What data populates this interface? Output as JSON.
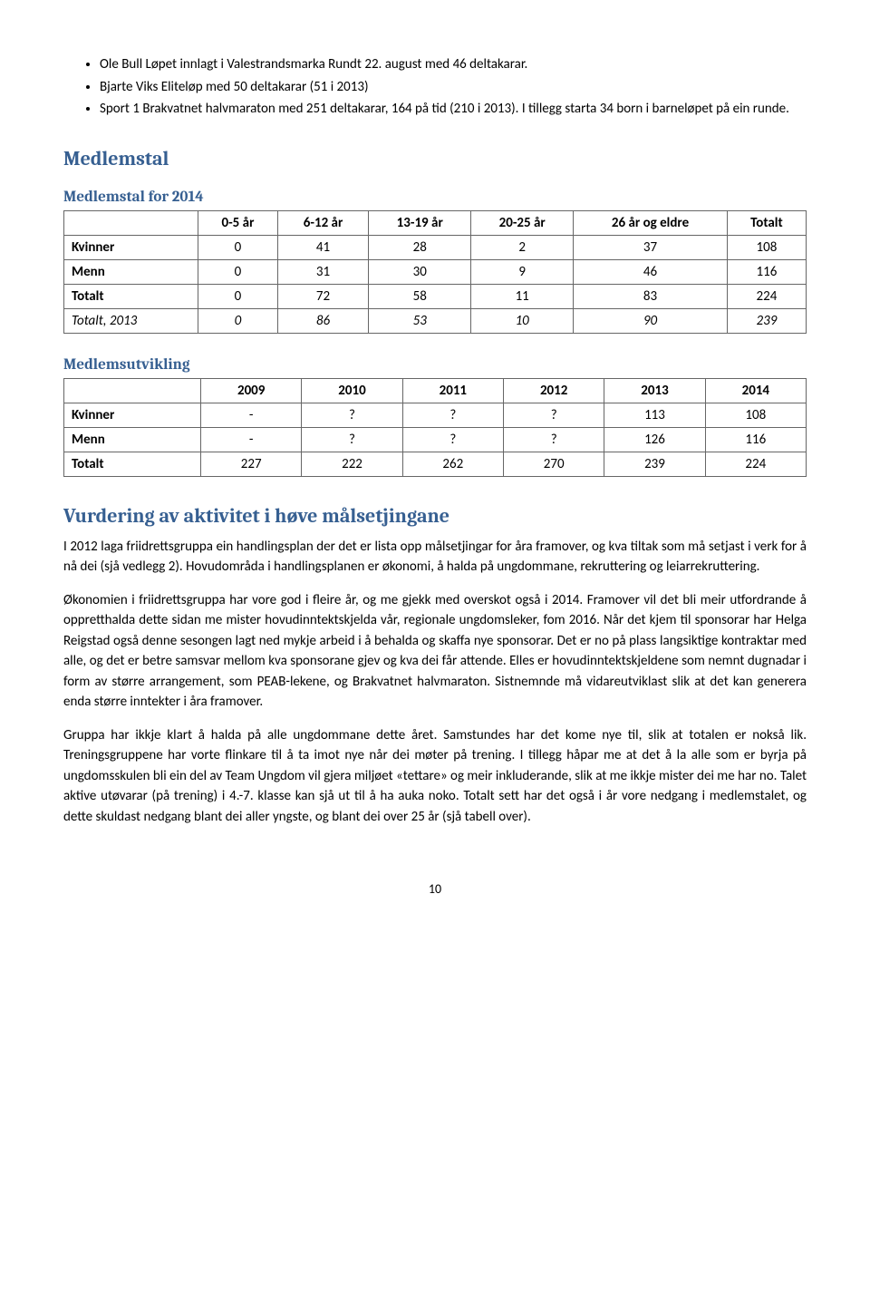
{
  "bullets": [
    "Ole Bull Løpet innlagt i Valestrandsmarka Rundt 22. august med 46 deltakarar.",
    "Bjarte Viks Eliteløp med 50 deltakarar (51 i 2013)",
    "Sport 1 Brakvatnet halvmaraton med 251 deltakarar, 164 på tid (210 i 2013). I tillegg starta 34 born i barneløpet på ein runde."
  ],
  "h_medlemstal": "Medlemstal",
  "h_medlemstal2014": "Medlemstal for 2014",
  "t1": {
    "headers": [
      "",
      "0-5 år",
      "6-12 år",
      "13-19 år",
      "20-25 år",
      "26 år og eldre",
      "Totalt"
    ],
    "rows": [
      [
        "Kvinner",
        "0",
        "41",
        "28",
        "2",
        "37",
        "108"
      ],
      [
        "Menn",
        "0",
        "31",
        "30",
        "9",
        "46",
        "116"
      ],
      [
        "Totalt",
        "0",
        "72",
        "58",
        "11",
        "83",
        "224"
      ]
    ],
    "italicRow": [
      "Totalt, 2013",
      "0",
      "86",
      "53",
      "10",
      "90",
      "239"
    ]
  },
  "h_utvikling": "Medlemsutvikling",
  "t2": {
    "headers": [
      "",
      "2009",
      "2010",
      "2011",
      "2012",
      "2013",
      "2014"
    ],
    "rows": [
      [
        "Kvinner",
        "-",
        "?",
        "?",
        "?",
        "113",
        "108"
      ],
      [
        "Menn",
        "-",
        "?",
        "?",
        "?",
        "126",
        "116"
      ],
      [
        "Totalt",
        "227",
        "222",
        "262",
        "270",
        "239",
        "224"
      ]
    ]
  },
  "h_vurdering": "Vurdering av aktivitet i høve målsetjingane",
  "paras": [
    "I 2012 laga friidrettsgruppa ein handlingsplan der det er lista opp målsetjingar for åra framover, og kva tiltak som må setjast i verk for å nå dei (sjå vedlegg 2). Hovudområda i handlingsplanen er økonomi, å halda på ungdommane, rekruttering og leiarrekruttering.",
    "Økonomien i friidrettsgruppa har vore god i fleire år, og me gjekk med overskot også i 2014. Framover vil det bli meir utfordrande å oppretthalda dette sidan me mister hovudinntektskjelda vår, regionale ungdomsleker, fom 2016. Når det kjem til sponsorar har Helga Reigstad også denne sesongen lagt ned mykje arbeid i å behalda og skaffa nye sponsorar. Det er no på plass langsiktige kontraktar med alle, og det er betre samsvar mellom kva sponsorane gjev og kva dei får attende. Elles er hovudinntektskjeldene som nemnt dugnadar i form av større arrangement, som PEAB-lekene, og Brakvatnet halvmaraton. Sistnemnde må vidareutviklast slik at det kan generera enda større inntekter i åra framover.",
    "Gruppa har ikkje klart å halda på alle ungdommane dette året. Samstundes har det kome nye til, slik at totalen er nokså lik. Treningsgruppene har vorte flinkare til å ta imot nye når dei møter på trening. I tillegg håpar me at det å la alle som er byrja på ungdomsskulen bli ein del av Team Ungdom vil gjera miljøet «tettare» og meir inkluderande, slik at me ikkje mister dei me har no. Talet aktive utøvarar (på trening) i 4.-7. klasse kan sjå ut til å ha auka noko. Totalt sett har det også i år vore nedgang i medlemstalet, og dette skuldast nedgang blant dei aller yngste, og blant dei over 25 år (sjå tabell over)."
  ],
  "pageNum": "10"
}
